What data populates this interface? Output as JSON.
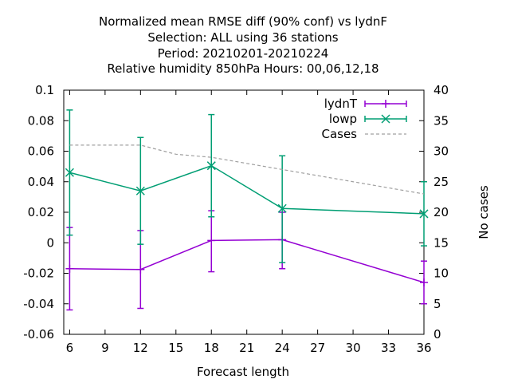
{
  "chart_data": {
    "type": "line",
    "title_lines": [
      "Normalized mean RMSE diff (90% conf) vs lydnF",
      "Selection: ALL using    36 stations",
      "Period: 20210201-20210224",
      "Relative humidity 850hPa   Hours:  00,06,12,18"
    ],
    "xlabel": "Forecast length",
    "ylabel": "",
    "y2label": "No cases",
    "xlim": [
      5.5,
      36
    ],
    "ylim": [
      -0.06,
      0.1
    ],
    "y2lim": [
      0,
      40
    ],
    "x_ticks": [
      "6",
      "9",
      "12",
      "15",
      "18",
      "21",
      "24",
      "27",
      "30",
      "33",
      "36"
    ],
    "y_ticks": [
      "0.1",
      "0.08",
      "0.06",
      "0.04",
      "0.02",
      "0",
      "-0.02",
      "-0.04",
      "-0.06"
    ],
    "y2_ticks": [
      "40",
      "35",
      "30",
      "25",
      "20",
      "15",
      "10",
      "5",
      "0"
    ],
    "legend_position": "top-right",
    "series": [
      {
        "name": "lydnT",
        "color": "#9400d3",
        "marker": "plus",
        "x": [
          6,
          12,
          18,
          24,
          36
        ],
        "y": [
          -0.017,
          -0.0175,
          0.0015,
          0.002,
          -0.026
        ],
        "err_low": [
          -0.044,
          -0.043,
          -0.019,
          -0.017,
          -0.04
        ],
        "err_high": [
          0.01,
          0.008,
          0.021,
          0.02,
          -0.012
        ]
      },
      {
        "name": "lowp",
        "color": "#009e73",
        "marker": "cross",
        "x": [
          6,
          12,
          18,
          24,
          36
        ],
        "y": [
          0.046,
          0.034,
          0.0505,
          0.0225,
          0.019
        ],
        "err_low": [
          0.005,
          -0.001,
          0.017,
          -0.013,
          -0.002
        ],
        "err_high": [
          0.087,
          0.069,
          0.084,
          0.057,
          0.04
        ]
      },
      {
        "name": "Cases",
        "color": "#a0a0a0",
        "style": "dashed",
        "axis": "right",
        "x": [
          6,
          9,
          12,
          15,
          18,
          21,
          24,
          27,
          30,
          33,
          36
        ],
        "y": [
          31,
          31,
          31,
          29.5,
          29,
          28,
          27,
          26,
          25,
          24,
          23
        ]
      }
    ]
  }
}
